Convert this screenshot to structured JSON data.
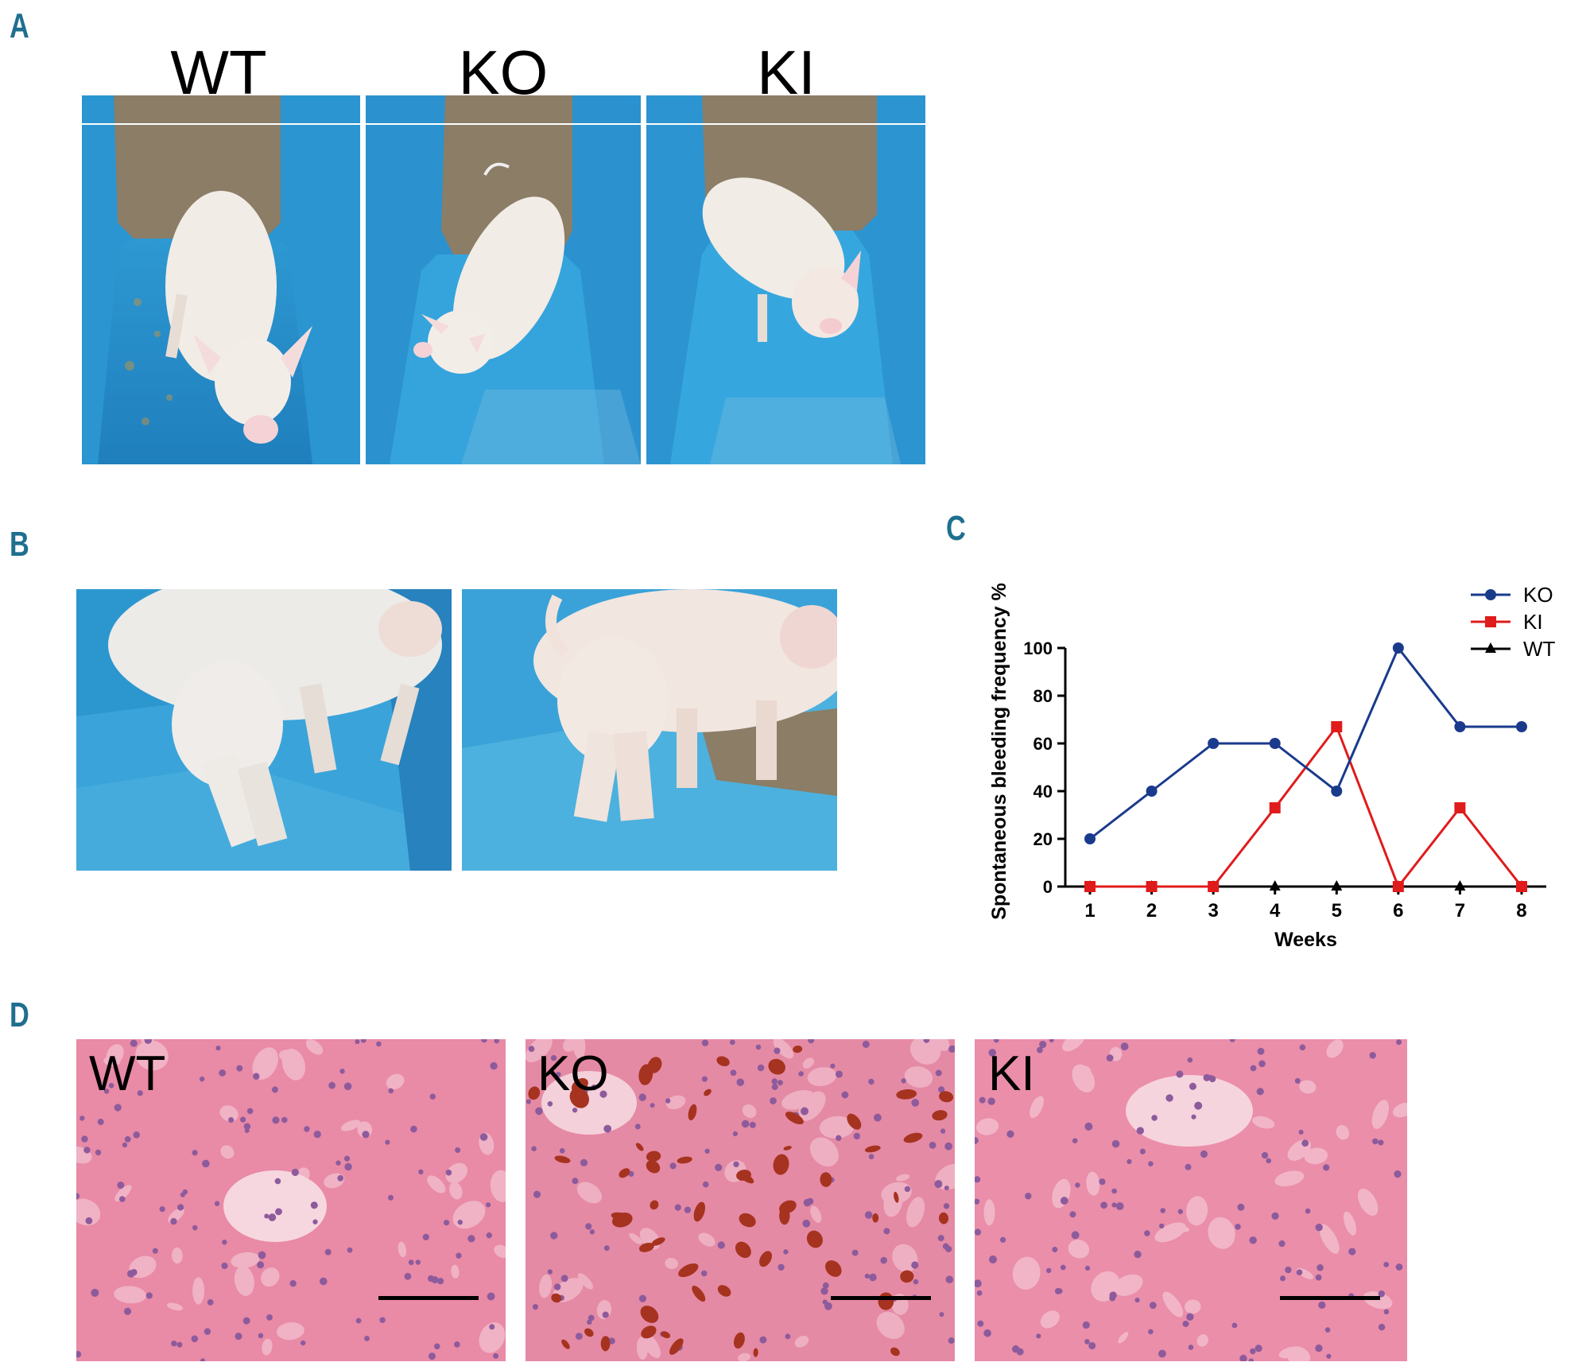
{
  "panels": {
    "a": "A",
    "b": "B",
    "c": "C",
    "d": "D"
  },
  "panel_a": {
    "labels": [
      "WT",
      "KO",
      "KI"
    ]
  },
  "panel_d": {
    "labels": [
      "WT",
      "KO",
      "KI"
    ]
  },
  "colors": {
    "panel_letter": "#1f6f8f",
    "ko": "#1a3a8c",
    "ki": "#e01b1b",
    "wt": "#000000",
    "tarp_blue": "#2f9fd6",
    "cardboard": "#8b7d66",
    "pig_skin": "#f1ece6",
    "tissue_pink": "#e98aa6",
    "hemosiderin": "#a6331f"
  },
  "chart_data": {
    "type": "line",
    "ylabel": "Spontaneous bleeding frequency %",
    "xlabel": "Weeks",
    "x": [
      1,
      2,
      3,
      4,
      5,
      6,
      7,
      8
    ],
    "yticks": [
      0,
      20,
      40,
      60,
      80,
      100
    ],
    "ylim": [
      0,
      100
    ],
    "series": [
      {
        "name": "KO",
        "color": "#1a3a8c",
        "marker": "circle",
        "values": [
          20,
          40,
          60,
          60,
          40,
          100,
          67,
          67
        ]
      },
      {
        "name": "KI",
        "color": "#e01b1b",
        "marker": "square",
        "values": [
          0,
          0,
          0,
          33,
          67,
          0,
          33,
          0
        ]
      },
      {
        "name": "WT",
        "color": "#000000",
        "marker": "triangle",
        "values": [
          0,
          0,
          0,
          0,
          0,
          0,
          0,
          0
        ]
      }
    ],
    "legend": "top-right",
    "grid": false
  }
}
